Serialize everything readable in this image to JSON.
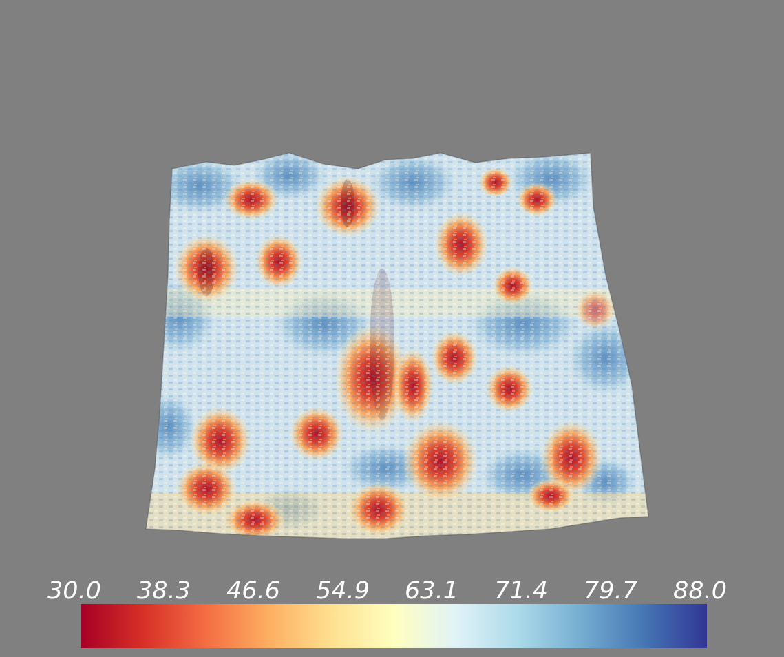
{
  "scene": {
    "background_color": "#808080",
    "surface_icon": "terrain-surface-icon"
  },
  "colorbar": {
    "min": 30.0,
    "max": 88.0,
    "colors": [
      "#a50026",
      "#d73027",
      "#f46d43",
      "#fdae61",
      "#fee090",
      "#ffffbf",
      "#e0f3f8",
      "#abd9e9",
      "#74add1",
      "#4575b4",
      "#313695"
    ],
    "tick_labels": [
      "30.0",
      "38.3",
      "46.6",
      "54.9",
      "63.1",
      "71.4",
      "79.7",
      "88.0"
    ]
  }
}
